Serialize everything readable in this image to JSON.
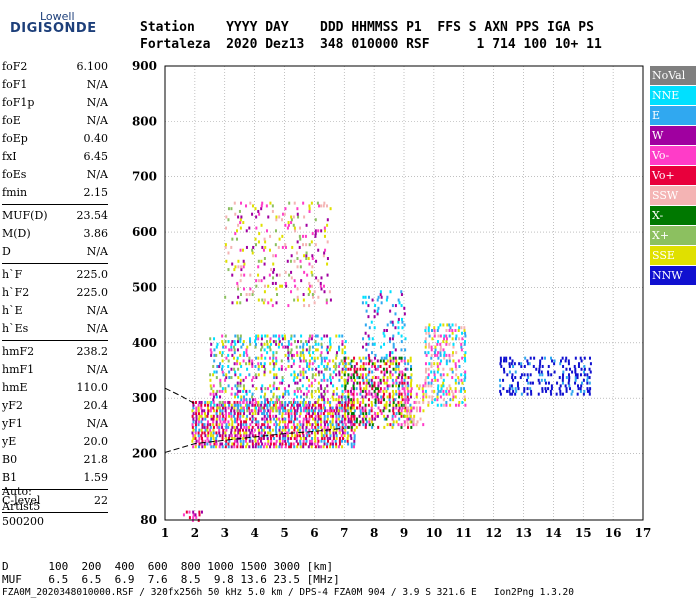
{
  "logo": {
    "line1": "Lowell",
    "line2": "DIGISONDE"
  },
  "header": {
    "line1": "Station    YYYY DAY    DDD HHMMSS P1  FFS S AXN PPS IGA PS",
    "line2": "Fortaleza  2020 Dez13  348 010000 RSF      1 714 100 10+ 11"
  },
  "params": [
    {
      "name": "foF2",
      "value": "6.100"
    },
    {
      "name": "foF1",
      "value": "N/A"
    },
    {
      "name": "foF1p",
      "value": "N/A"
    },
    {
      "name": "foE",
      "value": "N/A"
    },
    {
      "name": "foEp",
      "value": "0.40"
    },
    {
      "name": "fxI",
      "value": "6.45"
    },
    {
      "name": "foEs",
      "value": "N/A"
    },
    {
      "name": "fmin",
      "value": "2.15"
    },
    {
      "sep": true
    },
    {
      "name": "MUF(D)",
      "value": "23.54"
    },
    {
      "name": "M(D)",
      "value": "3.86"
    },
    {
      "name": "D",
      "value": "N/A"
    },
    {
      "sep": true
    },
    {
      "name": "h`F",
      "value": "225.0"
    },
    {
      "name": "h`F2",
      "value": "225.0"
    },
    {
      "name": "h`E",
      "value": "N/A"
    },
    {
      "name": "h`Es",
      "value": "N/A"
    },
    {
      "sep": true
    },
    {
      "name": "hmF2",
      "value": "238.2"
    },
    {
      "name": "hmF1",
      "value": "N/A"
    },
    {
      "name": "hmE",
      "value": "110.0"
    },
    {
      "name": "yF2",
      "value": "20.4"
    },
    {
      "name": "yF1",
      "value": "N/A"
    },
    {
      "name": "yE",
      "value": "20.0"
    },
    {
      "name": "B0",
      "value": "21.8"
    },
    {
      "name": "B1",
      "value": "1.59"
    },
    {
      "sep": true
    },
    {
      "name": "C-level",
      "value": "22"
    },
    {
      "sep": true
    }
  ],
  "auto": {
    "line1": "Auto:",
    "line2": "Artist5",
    "line3": "500200"
  },
  "footer": {
    "line1": "D      100  200  400  600  800 1000 1500 3000 [km]",
    "line2": "MUF    6.5  6.5  6.9  7.6  8.5  9.8 13.6 23.5 [MHz]",
    "line3": "FZA0M_2020348010000.RSF / 320fx256h 50 kHz 5.0 km / DPS-4 FZA0M 904 / 3.9 S 321.6 E   Ion2Png 1.3.20"
  },
  "legend": [
    {
      "label": "NoVal",
      "color": "#7f7f7f"
    },
    {
      "label": "NNE",
      "color": "#00e0ff"
    },
    {
      "label": "E",
      "color": "#30a8f0"
    },
    {
      "label": "W",
      "color": "#a000a0"
    },
    {
      "label": "Vo-",
      "color": "#ff3cc8"
    },
    {
      "label": "Vo+",
      "color": "#e8003c"
    },
    {
      "label": "SSW",
      "color": "#f4b4b4"
    },
    {
      "label": "X-",
      "color": "#007800"
    },
    {
      "label": "X+",
      "color": "#8cc060"
    },
    {
      "label": "SSE",
      "color": "#e0e000"
    },
    {
      "label": "NNW",
      "color": "#1010d0"
    }
  ],
  "chart_data": {
    "type": "scatter",
    "title": "",
    "xlabel": "",
    "ylabel": "",
    "xlim": [
      1,
      17
    ],
    "ylim": [
      80,
      900
    ],
    "x_ticks": [
      1,
      2,
      3,
      4,
      5,
      6,
      7,
      8,
      9,
      10,
      11,
      12,
      13,
      14,
      15,
      16,
      17
    ],
    "y_ticks": [
      80,
      200,
      300,
      400,
      500,
      600,
      700,
      800,
      900
    ],
    "grid": true,
    "legend_position": "right",
    "regions": [
      {
        "x": [
          1.9,
          7.3
        ],
        "y": [
          215,
          300
        ],
        "density": 0.9,
        "palette": [
          "#e8003c",
          "#ff3cc8",
          "#a000a0",
          "#e0e000",
          "#30a8f0"
        ]
      },
      {
        "x": [
          2.5,
          7.0
        ],
        "y": [
          280,
          420
        ],
        "density": 0.45,
        "palette": [
          "#30a8f0",
          "#00e0ff",
          "#ff3cc8",
          "#e0e000",
          "#a000a0",
          "#8cc060"
        ]
      },
      {
        "x": [
          7.0,
          9.2
        ],
        "y": [
          250,
          380
        ],
        "density": 0.7,
        "palette": [
          "#e0e000",
          "#e8003c",
          "#ff3cc8",
          "#a000a0",
          "#30a8f0",
          "#007800"
        ]
      },
      {
        "x": [
          9.0,
          9.6
        ],
        "y": [
          255,
          330
        ],
        "density": 0.5,
        "palette": [
          "#f4b4b4",
          "#ff3cc8",
          "#e0e000"
        ]
      },
      {
        "x": [
          9.7,
          11.0
        ],
        "y": [
          290,
          440
        ],
        "density": 0.55,
        "palette": [
          "#00e0ff",
          "#f4b4b4",
          "#ff3cc8",
          "#e0e000",
          "#30a8f0"
        ]
      },
      {
        "x": [
          3.0,
          6.5
        ],
        "y": [
          470,
          660
        ],
        "density": 0.2,
        "palette": [
          "#e0e000",
          "#f4b4b4",
          "#ff3cc8",
          "#8cc060",
          "#a000a0"
        ]
      },
      {
        "x": [
          7.6,
          9.0
        ],
        "y": [
          380,
          500
        ],
        "density": 0.25,
        "palette": [
          "#30a8f0",
          "#00e0ff",
          "#a000a0"
        ]
      },
      {
        "x": [
          12.2,
          15.2
        ],
        "y": [
          310,
          380
        ],
        "density": 0.45,
        "palette": [
          "#1010d0",
          "#1010d0",
          "#1010d0",
          "#30a8f0"
        ]
      },
      {
        "x": [
          1.6,
          2.3
        ],
        "y": [
          82,
          100
        ],
        "density": 0.5,
        "palette": [
          "#a000a0",
          "#ff3cc8",
          "#e8003c"
        ]
      }
    ],
    "trace_lower": [
      [
        1.0,
        202
      ],
      [
        2.0,
        218
      ],
      [
        3.0,
        224
      ],
      [
        4.0,
        230
      ],
      [
        5.0,
        236
      ],
      [
        6.0,
        240
      ],
      [
        7.0,
        246
      ]
    ],
    "trace_upper": [
      [
        1.0,
        318
      ],
      [
        1.5,
        305
      ],
      [
        2.0,
        290
      ]
    ]
  }
}
